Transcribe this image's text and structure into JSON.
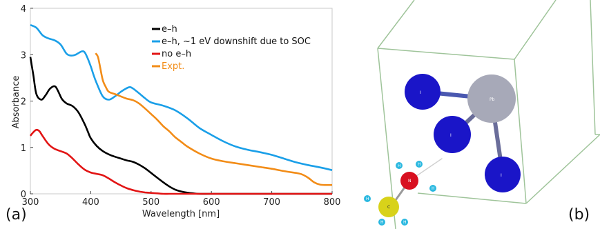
{
  "panels": {
    "a": "(a)",
    "b": "(b)"
  },
  "chart_data": {
    "type": "line",
    "title": "",
    "xlabel": "Wavelength [nm]",
    "ylabel": "Absorbance",
    "xlim": [
      300,
      800
    ],
    "ylim": [
      0,
      4
    ],
    "xticks": [
      300,
      400,
      500,
      600,
      700,
      800
    ],
    "yticks": [
      0,
      1,
      2,
      3,
      4
    ],
    "grid": false,
    "legend_position": "top-right",
    "series": [
      {
        "name": "e–h",
        "color": "#000000",
        "x": [
          300,
          305,
          310,
          318,
          325,
          332,
          340,
          345,
          352,
          360,
          370,
          380,
          390,
          395,
          400,
          410,
          420,
          430,
          440,
          450,
          460,
          470,
          480,
          490,
          500,
          510,
          520,
          530,
          540,
          550,
          560,
          570,
          580,
          600,
          650,
          700,
          750,
          800
        ],
        "y": [
          2.95,
          2.55,
          2.15,
          2.03,
          2.12,
          2.26,
          2.32,
          2.24,
          2.05,
          1.95,
          1.89,
          1.75,
          1.5,
          1.35,
          1.2,
          1.03,
          0.92,
          0.85,
          0.8,
          0.76,
          0.72,
          0.69,
          0.63,
          0.55,
          0.45,
          0.35,
          0.25,
          0.16,
          0.09,
          0.05,
          0.025,
          0.01,
          0.0,
          0.0,
          0.0,
          0.0,
          0.0,
          0.0
        ]
      },
      {
        "name": "e–h, ~1 eV downshift due to SOC",
        "color": "#1a9fe8",
        "x": [
          300,
          310,
          320,
          330,
          340,
          350,
          360,
          368,
          375,
          385,
          390,
          395,
          400,
          405,
          410,
          420,
          430,
          440,
          450,
          460,
          465,
          470,
          480,
          490,
          500,
          520,
          540,
          560,
          580,
          600,
          620,
          640,
          660,
          680,
          700,
          720,
          740,
          760,
          780,
          800
        ],
        "y": [
          3.64,
          3.58,
          3.42,
          3.35,
          3.31,
          3.22,
          3.02,
          2.98,
          3.0,
          3.07,
          3.05,
          2.92,
          2.75,
          2.55,
          2.38,
          2.1,
          2.03,
          2.1,
          2.2,
          2.28,
          2.3,
          2.27,
          2.17,
          2.06,
          1.97,
          1.9,
          1.8,
          1.63,
          1.42,
          1.27,
          1.13,
          1.02,
          0.95,
          0.9,
          0.84,
          0.76,
          0.68,
          0.62,
          0.57,
          0.51
        ]
      },
      {
        "name": "no e–h",
        "color": "#e21414",
        "x": [
          300,
          305,
          310,
          315,
          320,
          330,
          340,
          350,
          360,
          370,
          380,
          390,
          400,
          410,
          420,
          430,
          440,
          450,
          460,
          470,
          480,
          490,
          500,
          510,
          520,
          530,
          540,
          560,
          600,
          650,
          700,
          750,
          800
        ],
        "y": [
          1.25,
          1.33,
          1.38,
          1.35,
          1.25,
          1.07,
          0.97,
          0.92,
          0.87,
          0.76,
          0.63,
          0.52,
          0.46,
          0.43,
          0.4,
          0.33,
          0.25,
          0.18,
          0.12,
          0.08,
          0.05,
          0.03,
          0.02,
          0.01,
          0.0,
          0.0,
          0.0,
          0.0,
          0.0,
          0.0,
          0.0,
          0.0,
          0.0
        ]
      },
      {
        "name": "Expt.",
        "color": "#f28c17",
        "x": [
          408,
          412,
          416,
          420,
          425,
          430,
          440,
          450,
          460,
          470,
          480,
          490,
          500,
          510,
          520,
          530,
          540,
          550,
          560,
          580,
          600,
          620,
          640,
          660,
          680,
          700,
          720,
          740,
          750,
          760,
          770,
          780,
          790,
          800
        ],
        "y": [
          3.03,
          2.95,
          2.7,
          2.45,
          2.3,
          2.2,
          2.15,
          2.1,
          2.05,
          2.02,
          1.95,
          1.84,
          1.72,
          1.6,
          1.46,
          1.35,
          1.22,
          1.12,
          1.02,
          0.87,
          0.76,
          0.7,
          0.66,
          0.62,
          0.58,
          0.54,
          0.49,
          0.45,
          0.42,
          0.35,
          0.25,
          0.2,
          0.19,
          0.19
        ]
      }
    ]
  },
  "molecule": {
    "atoms": [
      {
        "label": "I",
        "color": "#1a15c8"
      },
      {
        "label": "Pb",
        "color": "#a7a9b8"
      },
      {
        "label": "I",
        "color": "#1a15c8"
      },
      {
        "label": "I",
        "color": "#1a15c8"
      },
      {
        "label": "N",
        "color": "#d81020"
      },
      {
        "label": "C",
        "color": "#d8d21a"
      },
      {
        "label": "H",
        "color": "#2ab8e0"
      },
      {
        "label": "H",
        "color": "#2ab8e0"
      },
      {
        "label": "H",
        "color": "#2ab8e0"
      },
      {
        "label": "H",
        "color": "#2ab8e0"
      },
      {
        "label": "H",
        "color": "#2ab8e0"
      },
      {
        "label": "H",
        "color": "#2ab8e0"
      }
    ],
    "cell_color": "#9fc49a"
  }
}
